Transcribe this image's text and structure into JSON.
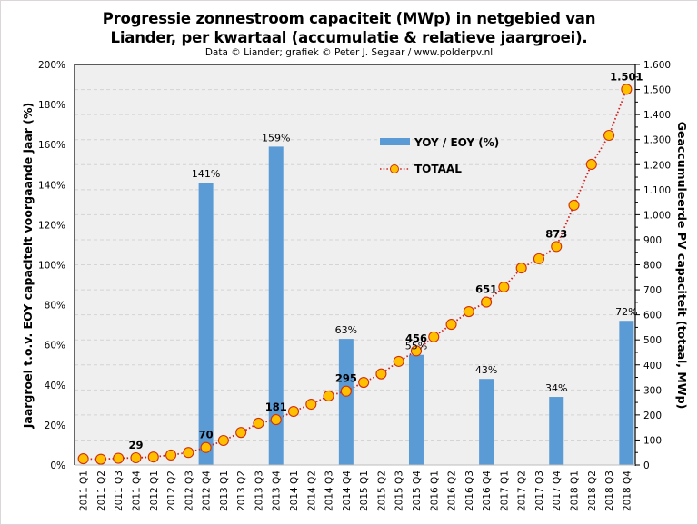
{
  "header": {
    "title_line1": "Progressie zonnestroom capaciteit (MWp) in netgebied van",
    "title_line2": "Liander, per kwartaal (accumulatie & relatieve jaargroei).",
    "subtitle": "Data © Liander; grafiek © Peter J. Segaar / www.polderpv.nl"
  },
  "chart_data": {
    "type": "bar+line",
    "title": "Progressie zonnestroom capaciteit (MWp) in netgebied van Liander, per kwartaal (accumulatie & relatieve jaargroei).",
    "subtitle": "Data © Liander; grafiek © Peter J. Segaar / www.polderpv.nl",
    "categories": [
      "2011 Q1",
      "2011 Q2",
      "2011 Q3",
      "2011 Q4",
      "2012 Q1",
      "2012 Q2",
      "2012 Q3",
      "2012 Q4",
      "2013 Q1",
      "2013 Q2",
      "2013 Q3",
      "2013 Q4",
      "2014 Q1",
      "2014 Q2",
      "2014 Q3",
      "2014 Q4",
      "2015 Q1",
      "2015 Q2",
      "2015 Q3",
      "2015 Q4",
      "2016 Q1",
      "2016 Q2",
      "2016 Q3",
      "2016 Q4",
      "2017 Q1",
      "2017 Q2",
      "2017 Q3",
      "2017 Q4",
      "2018 Q1",
      "2018 Q2",
      "2018 Q3",
      "2018 Q4"
    ],
    "y_left": {
      "label": "Jaargroei t.o.v. EOY capaciteit voorgaande jaar (%)",
      "range": [
        0,
        200
      ],
      "ticks": [
        "0%",
        "20%",
        "40%",
        "60%",
        "80%",
        "100%",
        "120%",
        "140%",
        "160%",
        "180%",
        "200%"
      ]
    },
    "y_right": {
      "label": "Geaccumuleerde PV capaciteit (totaal, MWp)",
      "range": [
        0,
        1600
      ],
      "ticks": [
        "0",
        "100",
        "200",
        "300",
        "400",
        "500",
        "600",
        "700",
        "800",
        "900",
        "1.000",
        "1.100",
        "1.200",
        "1.300",
        "1.400",
        "1.500",
        "1.600"
      ]
    },
    "grid": true,
    "legend_position": "top-center (inside plot)",
    "series": [
      {
        "name": "YOY / EOY (%)",
        "type": "bar",
        "axis": "left",
        "color": "#5b9bd5",
        "values": [
          null,
          null,
          null,
          null,
          null,
          null,
          null,
          141,
          null,
          null,
          null,
          159,
          null,
          null,
          null,
          63,
          null,
          null,
          null,
          55,
          null,
          null,
          null,
          43,
          null,
          null,
          null,
          34,
          null,
          null,
          null,
          72
        ],
        "labels": [
          null,
          null,
          null,
          null,
          null,
          null,
          null,
          "141%",
          null,
          null,
          null,
          "159%",
          null,
          null,
          null,
          "63%",
          null,
          null,
          null,
          "55%",
          null,
          null,
          null,
          "43%",
          null,
          null,
          null,
          "34%",
          null,
          null,
          null,
          "72%"
        ]
      },
      {
        "name": "TOTAAL",
        "type": "line",
        "axis": "right",
        "line_color": "#cc2020",
        "marker_fill": "#ffc000",
        "marker_edge": "#d03010",
        "values": [
          25,
          23,
          27,
          29,
          32,
          40,
          50,
          70,
          98,
          130,
          167,
          181,
          214,
          243,
          276,
          295,
          330,
          364,
          414,
          456,
          512,
          562,
          613,
          651,
          711,
          787,
          824,
          873,
          1038,
          1201,
          1317,
          1501
        ],
        "labels": [
          null,
          null,
          null,
          "29",
          null,
          null,
          null,
          "70",
          null,
          null,
          null,
          "181",
          null,
          null,
          null,
          "295",
          null,
          null,
          null,
          "456",
          null,
          null,
          null,
          "651",
          null,
          null,
          null,
          "873",
          null,
          null,
          null,
          "1.501"
        ]
      }
    ]
  }
}
